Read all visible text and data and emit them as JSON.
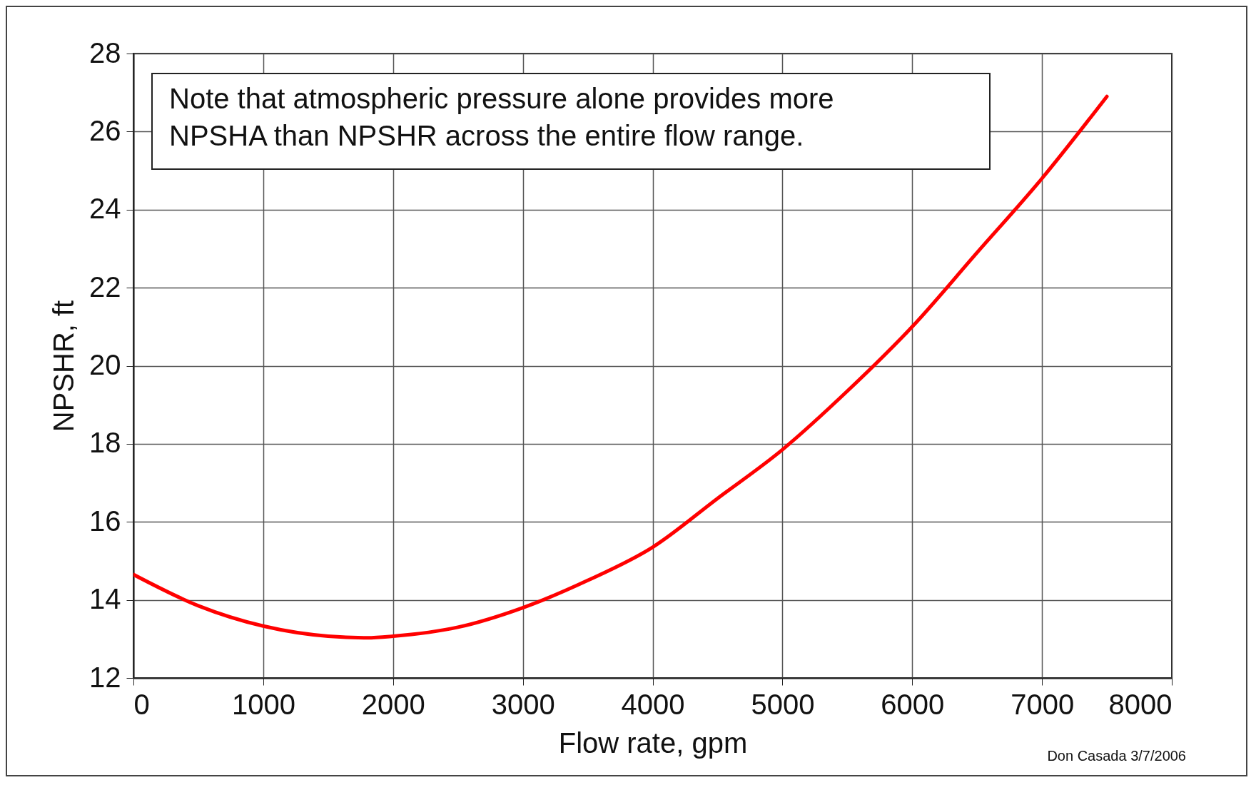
{
  "chart_data": {
    "type": "line",
    "xlabel": "Flow rate, gpm",
    "ylabel": "NPSHR, ft",
    "annotations": [
      "Note that atmospheric pressure alone provides more\nNPSHA than NPSHR across the entire flow range.",
      "Don Casada 3/7/2006"
    ],
    "x": [
      0,
      500,
      1000,
      1500,
      1800,
      2000,
      2500,
      3000,
      3500,
      4000,
      4500,
      5000,
      5500,
      6000,
      6500,
      7000,
      7500
    ],
    "series": [
      {
        "color": "#ff0000",
        "values": [
          14.65,
          13.85,
          13.33,
          13.07,
          13.03,
          13.07,
          13.3,
          13.8,
          14.5,
          15.35,
          16.6,
          17.85,
          19.35,
          21.0,
          22.9,
          24.8,
          26.9
        ]
      }
    ],
    "xlim": [
      0,
      8000
    ],
    "xticks": [
      0,
      1000,
      2000,
      3000,
      4000,
      5000,
      6000,
      7000,
      8000
    ],
    "ylim": [
      12,
      28
    ],
    "yticks": [
      12,
      14,
      16,
      18,
      20,
      22,
      24,
      26,
      28
    ],
    "grid": true,
    "marker": "none",
    "line_style": "solid"
  }
}
